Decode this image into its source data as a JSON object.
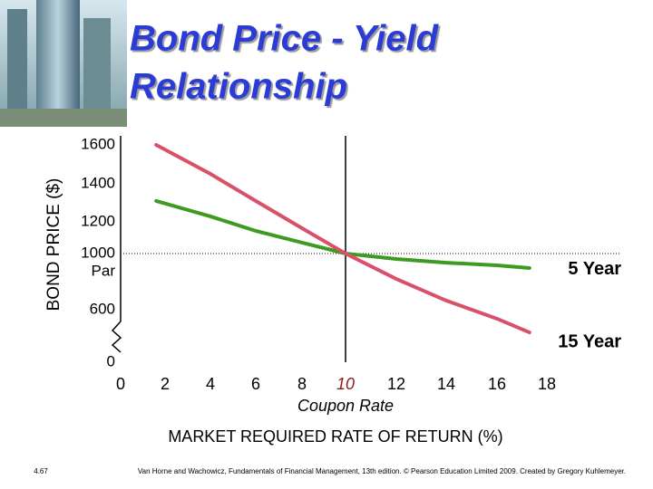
{
  "chart_data": {
    "type": "line",
    "title": "Bond Price - Yield Relationship",
    "y_label": "BOND PRICE ($)",
    "x_label": "MARKET REQUIRED RATE OF RETURN (%)",
    "yticks": [
      0,
      600,
      1000,
      1200,
      1400,
      1600
    ],
    "ylim": [
      0,
      1600
    ],
    "xticks": [
      0,
      2,
      4,
      6,
      8,
      10,
      12,
      14,
      16,
      18
    ],
    "xlim": [
      0,
      18
    ],
    "par_label": "Par",
    "hline": 1000,
    "vline": 10,
    "vline_label": "Coupon Rate",
    "x": [
      1.6,
      4,
      6,
      8,
      10,
      12,
      14,
      16,
      17.3
    ],
    "series": [
      {
        "name": "5 Year",
        "color": "#3f9a22",
        "values": [
          1310,
          1229,
          1143,
          1069,
          1000,
          961,
          935,
          916,
          897
        ]
      },
      {
        "name": "15 Year",
        "color": "#d9506a",
        "values": [
          1600,
          1451,
          1310,
          1160,
          1000,
          819,
          665,
          497,
          341
        ]
      }
    ]
  },
  "slide_number": "4.67",
  "citation": "Van Horne and Wachowicz, Fundamentals of Financial Management, 13th edition. © Pearson Education Limited 2009. Created by Gregory Kuhlemeyer."
}
